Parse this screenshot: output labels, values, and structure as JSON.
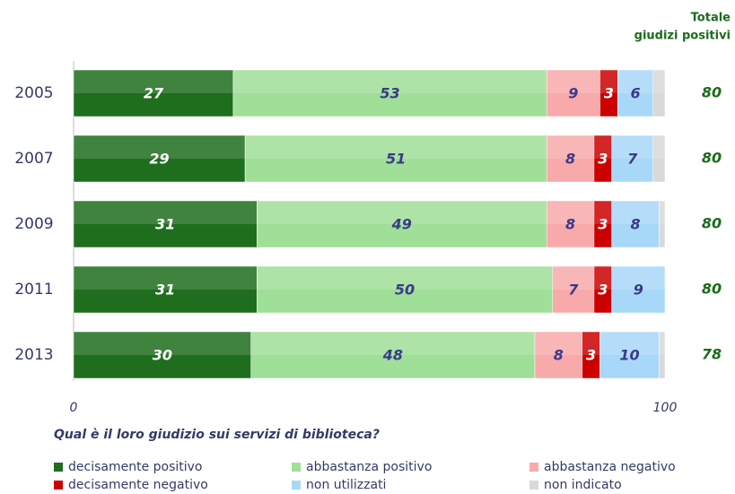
{
  "chart_data": {
    "type": "stacked_barh",
    "categories": [
      "2005",
      "2007",
      "2009",
      "2011",
      "2013"
    ],
    "series": [
      {
        "name": "decisamente positivo",
        "color": "#1e6e1e",
        "label_color": "#ffffff",
        "show_labels": true,
        "values": [
          27,
          29,
          31,
          31,
          30
        ]
      },
      {
        "name": "abbastanza positivo",
        "color": "#9fdf97",
        "label_color": "#3a3a8a",
        "show_labels": true,
        "values": [
          53,
          51,
          49,
          50,
          48
        ]
      },
      {
        "name": "abbastanza negativo",
        "color": "#f8aaaa",
        "label_color": "#3a3a8a",
        "show_labels": true,
        "values": [
          9,
          8,
          8,
          7,
          8
        ]
      },
      {
        "name": "decisamente negativo",
        "color": "#cc0000",
        "label_color": "#ffffff",
        "show_labels": true,
        "values": [
          3,
          3,
          3,
          3,
          3
        ]
      },
      {
        "name": "non utilizzati",
        "color": "#a8d8f8",
        "label_color": "#3a3a8a",
        "show_labels": true,
        "values": [
          6,
          7,
          8,
          9,
          10
        ]
      },
      {
        "name": "non indicato",
        "color": "#d9d9d9",
        "label_color": "#3a3a8a",
        "show_labels": false,
        "values": [
          2,
          2,
          1,
          0,
          1
        ]
      }
    ],
    "xlim": [
      0,
      100
    ],
    "xticks": [
      0,
      100
    ],
    "xlabel": "Qual è il loro giudizio sui servizi di biblioteca?",
    "totals": {
      "title": [
        "Totale",
        "giudizi positivi"
      ],
      "values": [
        80,
        80,
        80,
        80,
        78
      ]
    }
  }
}
